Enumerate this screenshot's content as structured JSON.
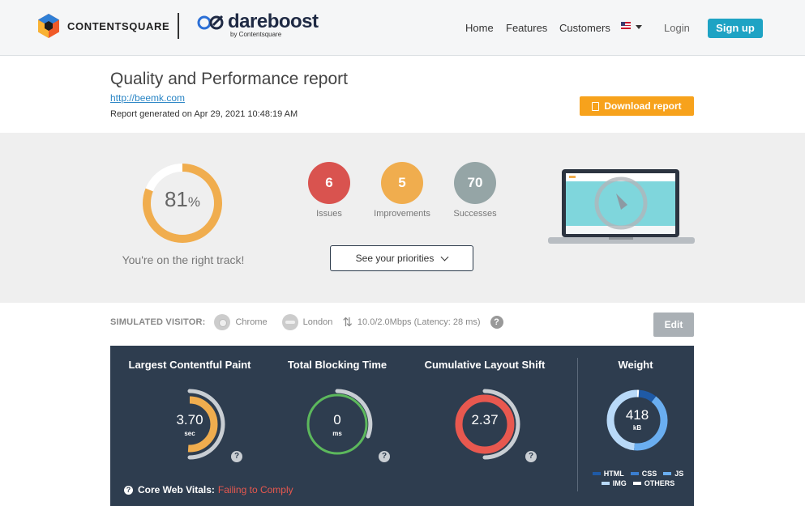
{
  "header": {
    "contentsquare": "CONTENTSQUARE",
    "dareboost": "dareboost",
    "dareboost_sub": "by Contentsquare",
    "nav": [
      "Home",
      "Features",
      "Customers"
    ],
    "login": "Login",
    "signup": "Sign up",
    "flag_icon": "us-flag-icon"
  },
  "report": {
    "title": "Quality and Performance report",
    "url": "http://beemk.com",
    "generated": "Report generated on Apr 29, 2021 10:48:19 AM",
    "download": "Download report"
  },
  "summary": {
    "score": "81",
    "score_unit": "%",
    "score_value": 81,
    "score_color": "#f0ad4e",
    "message": "You're on the right track!",
    "issues": {
      "count": "6",
      "label": "Issues",
      "color": "#d9534f"
    },
    "improvements": {
      "count": "5",
      "label": "Improvements",
      "color": "#f0ad4e"
    },
    "successes": {
      "count": "70",
      "label": "Successes",
      "color": "#95a5a6"
    },
    "priorities": "See your priorities"
  },
  "visitor": {
    "label": "SIMULATED VISITOR:",
    "browser": "Chrome",
    "location": "London",
    "connection": "10.0/2.0Mbps (Latency: 28 ms)",
    "help": "?",
    "edit": "Edit"
  },
  "metrics": {
    "lcp": {
      "title": "Largest Contentful Paint",
      "value": "3.70",
      "unit": "sec",
      "color": "#f0ad4e"
    },
    "tbt": {
      "title": "Total Blocking Time",
      "value": "0",
      "unit": "ms",
      "color": "#5cb85c"
    },
    "cls": {
      "title": "Cumulative Layout Shift",
      "value": "2.37",
      "unit": "",
      "color": "#e8584f"
    },
    "weight": {
      "title": "Weight",
      "value": "418",
      "unit": "kB"
    },
    "help": "?",
    "cwv_label": "Core Web Vitals:",
    "cwv_status": "Failing to Comply",
    "legend": [
      {
        "label": "HTML",
        "color": "#1f5aa6"
      },
      {
        "label": "CSS",
        "color": "#3a7ed0"
      },
      {
        "label": "JS",
        "color": "#6aaef0"
      },
      {
        "label": "IMG",
        "color": "#b8d9f8"
      },
      {
        "label": "OTHERS",
        "color": "#ffffff"
      }
    ]
  }
}
